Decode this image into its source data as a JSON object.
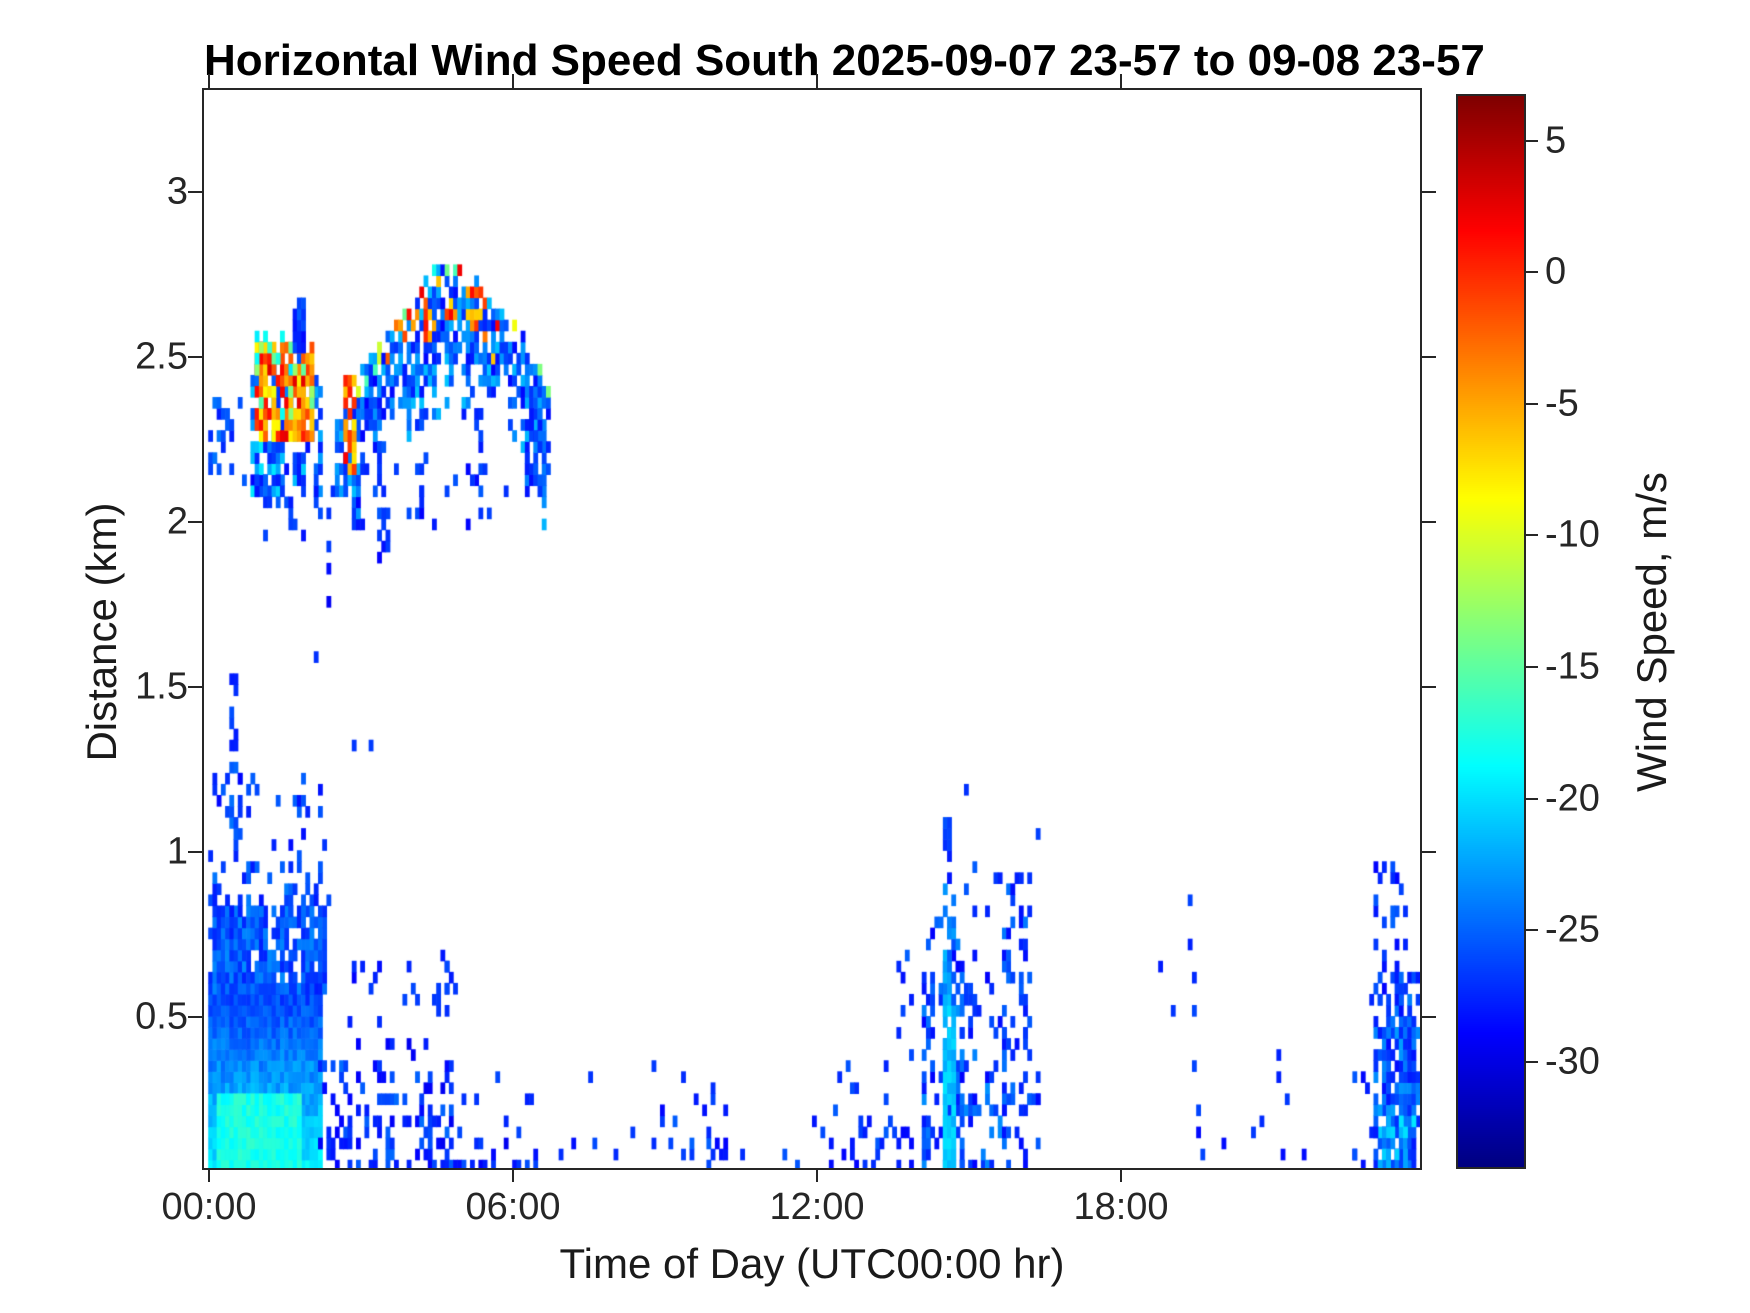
{
  "title": "Horizontal Wind Speed South 2025-09-07 23-57 to 09-08 23-57",
  "axes": {
    "xlabel": "Time of Day (UTC00:00 hr)",
    "ylabel": "Distance (km)",
    "x_ticks": [
      {
        "hour": 0,
        "label": "00:00"
      },
      {
        "hour": 6,
        "label": "06:00"
      },
      {
        "hour": 12,
        "label": "12:00"
      },
      {
        "hour": 18,
        "label": "18:00"
      }
    ],
    "y_ticks": [
      {
        "km": 0.5,
        "label": "0.5"
      },
      {
        "km": 1,
        "label": "1"
      },
      {
        "km": 1.5,
        "label": "1.5"
      },
      {
        "km": 2,
        "label": "2"
      },
      {
        "km": 2.5,
        "label": "2.5"
      },
      {
        "km": 3,
        "label": "3"
      }
    ]
  },
  "colorbar": {
    "label": "Wind Speed, m/s",
    "ticks": [
      {
        "value": 5,
        "label": "5"
      },
      {
        "value": 0,
        "label": "0"
      },
      {
        "value": -5,
        "label": "-5"
      },
      {
        "value": -10,
        "label": "-10"
      },
      {
        "value": -15,
        "label": "-15"
      },
      {
        "value": -20,
        "label": "-20"
      },
      {
        "value": -25,
        "label": "-25"
      },
      {
        "value": -30,
        "label": "-30"
      }
    ],
    "vmin": -34,
    "vmax": 6.7,
    "colormap": "jet"
  },
  "chart_data": {
    "type": "heatmap",
    "title": "Horizontal Wind Speed South 2025-09-07 23-57 to 09-08 23-57",
    "xlabel": "Time of Day (UTC00:00 hr)",
    "ylabel": "Distance (km)",
    "value_label": "Wind Speed, m/s",
    "x_range_hours": [
      -0.1,
      23.9
    ],
    "y_range_km": [
      0.042,
      3.309
    ],
    "cell_hours": 0.08333,
    "cell_km": 0.0335,
    "value_range": [
      -34,
      6.7
    ],
    "grid": false,
    "legend_position": "right-colorbar",
    "features": [
      {
        "name": "elevated-lead-specks",
        "kind": "region",
        "t": [
          -0.05,
          0.4
        ],
        "h": [
          2.16,
          2.36
        ],
        "density": 0.45,
        "value": -26,
        "vspread": 2
      },
      {
        "name": "elevated-gap-specks",
        "kind": "region",
        "t": [
          0.4,
          0.85
        ],
        "h": [
          2.05,
          2.4
        ],
        "density": 0.1,
        "value": -27,
        "vspread": 2
      },
      {
        "name": "cloud-A-blue-fringe",
        "kind": "region",
        "t": [
          0.78,
          2.18
        ],
        "h": [
          2.08,
          2.56
        ],
        "density": 0.68,
        "value": -24,
        "vspread": 4.5,
        "ragged": 1,
        "fade_top": 0.4
      },
      {
        "name": "cloud-A-warm-core",
        "kind": "region",
        "t": [
          0.9,
          2.02
        ],
        "h": [
          2.26,
          2.5
        ],
        "density": 0.82,
        "value": -3,
        "vspread": 6,
        "ragged": 1
      },
      {
        "name": "cloud-A-cyan-specks",
        "kind": "region",
        "t": [
          0.9,
          2.02
        ],
        "h": [
          2.3,
          2.54
        ],
        "density": 0.15,
        "value": -16,
        "vspread": 4
      },
      {
        "name": "cloud-A-top-spike",
        "kind": "region",
        "t": [
          1.68,
          1.78
        ],
        "h": [
          2.5,
          2.65
        ],
        "density": 0.8,
        "value": -27,
        "vspread": 2
      },
      {
        "name": "cloud-A-skirt",
        "kind": "region",
        "t": [
          0.9,
          2.25
        ],
        "h": [
          1.95,
          2.1
        ],
        "density": 0.18,
        "value": -27,
        "vspread": 2
      },
      {
        "name": "virga-dots",
        "kind": "dots",
        "points": [
          [
            2.05,
            1.57
          ],
          [
            2.28,
            1.92
          ],
          [
            2.3,
            2.02
          ],
          [
            2.32,
            1.83
          ],
          [
            2.35,
            1.73
          ],
          [
            2.42,
            2.08
          ],
          [
            2.48,
            2.15
          ],
          [
            2.85,
            1.3
          ],
          [
            3.15,
            1.29
          ]
        ],
        "value": -28,
        "vspread": 1.5
      },
      {
        "name": "cloud-B-arc",
        "kind": "arc",
        "t": [
          2.5,
          6.65
        ],
        "top": [
          [
            2.5,
            2.32
          ],
          [
            3.0,
            2.44
          ],
          [
            3.5,
            2.56
          ],
          [
            4.1,
            2.67
          ],
          [
            4.6,
            2.78
          ],
          [
            5.1,
            2.73
          ],
          [
            5.6,
            2.66
          ],
          [
            6.1,
            2.56
          ],
          [
            6.65,
            2.43
          ]
        ],
        "thickness": 0.36,
        "density": 0.78,
        "value": -25,
        "vspread": 4,
        "warm": {
          "t": [
            3.4,
            5.7
          ],
          "band": 0.18,
          "prob": 0.42,
          "value": -2,
          "vspread": 5.5
        },
        "topspeck": {
          "prob": 0.3,
          "value": -13,
          "vspread": 5
        }
      },
      {
        "name": "cloud-B-red-column",
        "kind": "region",
        "t": [
          2.68,
          2.85
        ],
        "h": [
          2.16,
          2.42
        ],
        "density": 0.75,
        "value": -3,
        "vspread": 5
      },
      {
        "name": "cloud-B-hang-1",
        "kind": "region",
        "t": [
          3.3,
          3.45
        ],
        "h": [
          1.88,
          2.2
        ],
        "density": 0.4,
        "value": -27,
        "vspread": 2
      },
      {
        "name": "cloud-B-hang-2",
        "kind": "region",
        "t": [
          4.08,
          4.2
        ],
        "h": [
          2.0,
          2.32
        ],
        "density": 0.4,
        "value": -27,
        "vspread": 2
      },
      {
        "name": "cloud-B-hang-3",
        "kind": "region",
        "t": [
          5.22,
          5.35
        ],
        "h": [
          2.02,
          2.32
        ],
        "density": 0.4,
        "value": -27,
        "vspread": 2
      },
      {
        "name": "cloud-B-hang-4",
        "kind": "region",
        "t": [
          6.22,
          6.5
        ],
        "h": [
          2.08,
          2.3
        ],
        "density": 0.45,
        "value": -26,
        "vspread": 2.5
      },
      {
        "name": "below-arc-specks",
        "kind": "region",
        "t": [
          2.9,
          6.5
        ],
        "h": [
          1.98,
          2.15
        ],
        "density": 0.07,
        "value": -27,
        "vspread": 2
      },
      {
        "name": "bl-cyan-base",
        "kind": "region",
        "t": [
          -0.05,
          2.15
        ],
        "h": [
          0.042,
          0.56
        ],
        "density": 1,
        "value": -19.5,
        "vspread": 1.4,
        "vgrad": -7
      },
      {
        "name": "bl-bright-bottom",
        "kind": "region",
        "t": [
          0.15,
          1.7
        ],
        "h": [
          0.042,
          0.24
        ],
        "density": 1,
        "value": -17.8,
        "vspread": 1.2
      },
      {
        "name": "bl-upper-solid",
        "kind": "region",
        "t": [
          -0.05,
          2.2
        ],
        "h": [
          0.56,
          0.82
        ],
        "density": 0.88,
        "value": -25.5,
        "vspread": 2.2,
        "ragged": 1
      },
      {
        "name": "bl-upper-sparse",
        "kind": "region",
        "t": [
          -0.05,
          2.28
        ],
        "h": [
          0.82,
          1.02
        ],
        "density": 0.42,
        "value": -26,
        "vspread": 2.2,
        "ragged": 1,
        "fade_top": 0.8
      },
      {
        "name": "bl-plume-base",
        "kind": "region",
        "t": [
          0.28,
          0.58
        ],
        "h": [
          1.0,
          1.3
        ],
        "density": 0.6,
        "value": -26,
        "vspread": 2,
        "fade_top": 0.5
      },
      {
        "name": "bl-plume-top",
        "kind": "region",
        "t": [
          0.36,
          0.48
        ],
        "h": [
          1.3,
          1.54
        ],
        "density": 0.75,
        "value": -26.5,
        "vspread": 1.5
      },
      {
        "name": "bl-outliers",
        "kind": "region",
        "t": [
          -0.05,
          2.3
        ],
        "h": [
          1.02,
          1.22
        ],
        "density": 0.08,
        "value": -27,
        "vspread": 2
      },
      {
        "name": "morning-speckle-band",
        "kind": "region",
        "t": [
          2.15,
          4.75
        ],
        "h": [
          0.042,
          0.52
        ],
        "density": 0.55,
        "value": -27,
        "vspread": 2.5,
        "fade_top": 1.3,
        "ragged": 1
      },
      {
        "name": "morning-band-outliers",
        "kind": "region",
        "t": [
          2.2,
          4.7
        ],
        "h": [
          0.52,
          0.64
        ],
        "density": 0.1,
        "value": -27,
        "vspread": 2
      },
      {
        "name": "cluster-0430",
        "kind": "region",
        "t": [
          4.5,
          4.8
        ],
        "h": [
          0.5,
          0.66
        ],
        "density": 0.3,
        "value": -27,
        "vspread": 2
      },
      {
        "name": "late-morning-sparse",
        "kind": "region",
        "t": [
          4.75,
          6.6
        ],
        "h": [
          0.042,
          0.34
        ],
        "density": 0.26,
        "value": -27.5,
        "vspread": 2,
        "fade_top": 1,
        "ragged": 1
      },
      {
        "name": "midday-dots",
        "kind": "dots",
        "points": [
          [
            6.9,
            0.07
          ],
          [
            7.15,
            0.1
          ],
          [
            7.5,
            0.3
          ],
          [
            7.55,
            0.1
          ],
          [
            8.0,
            0.06
          ],
          [
            8.3,
            0.12
          ],
          [
            8.7,
            0.33
          ],
          [
            8.75,
            0.1
          ]
        ],
        "value": -27,
        "vspread": 1.5
      },
      {
        "name": "cluster-0930",
        "kind": "region",
        "t": [
          8.85,
          10.3
        ],
        "h": [
          0.042,
          0.26
        ],
        "density": 0.3,
        "value": -27,
        "vspread": 2,
        "fade_top": 1,
        "ragged": 1
      },
      {
        "name": "midday-dots-2",
        "kind": "dots",
        "points": [
          [
            9.3,
            0.3
          ],
          [
            9.9,
            0.28
          ],
          [
            10.15,
            0.2
          ],
          [
            10.5,
            0.06
          ],
          [
            11.3,
            0.07
          ],
          [
            11.6,
            0.05
          ],
          [
            11.9,
            0.18
          ],
          [
            12.05,
            0.13
          ]
        ],
        "value": -27,
        "vspread": 1.5
      },
      {
        "name": "cluster-1240",
        "kind": "region",
        "t": [
          12.2,
          13.45
        ],
        "h": [
          0.042,
          0.3
        ],
        "density": 0.32,
        "value": -27,
        "vspread": 2,
        "fade_top": 1.1,
        "ragged": 1
      },
      {
        "name": "cluster-1240-dots",
        "kind": "dots",
        "points": [
          [
            13.3,
            0.34
          ],
          [
            12.6,
            0.33
          ],
          [
            12.4,
            0.3
          ]
        ],
        "value": -27,
        "vspread": 1.5
      },
      {
        "name": "afternoon-lead",
        "kind": "region",
        "t": [
          13.55,
          13.8
        ],
        "h": [
          0.042,
          0.78
        ],
        "density": 0.25,
        "value": -27,
        "vspread": 2,
        "fade_top": 0.5,
        "ragged": 1
      },
      {
        "name": "afternoon-main",
        "kind": "region",
        "t": [
          14.05,
          14.8
        ],
        "h": [
          0.042,
          0.82
        ],
        "density": 0.68,
        "value": -26,
        "vspread": 3,
        "fade_top": 0.6,
        "ragged": 1
      },
      {
        "name": "afternoon-cyan-streak",
        "kind": "region",
        "t": [
          14.45,
          14.68
        ],
        "h": [
          0.042,
          0.52
        ],
        "density": 0.95,
        "value": -21,
        "vspread": 1.5
      },
      {
        "name": "afternoon-streak-upper",
        "kind": "region",
        "t": [
          14.45,
          14.68
        ],
        "h": [
          0.52,
          0.9
        ],
        "density": 0.55,
        "value": -23.5,
        "vspread": 2
      },
      {
        "name": "afternoon-spike",
        "kind": "region",
        "t": [
          14.45,
          14.56
        ],
        "h": [
          0.9,
          1.1
        ],
        "density": 0.6,
        "value": -27,
        "vspread": 2
      },
      {
        "name": "afternoon-right",
        "kind": "region",
        "t": [
          14.8,
          15.65
        ],
        "h": [
          0.042,
          1.0
        ],
        "density": 0.4,
        "value": -26,
        "vspread": 3,
        "fade_top": 0.9,
        "ragged": 1
      },
      {
        "name": "afternoon-tail",
        "kind": "region",
        "t": [
          15.65,
          16.15
        ],
        "h": [
          0.25,
          0.9
        ],
        "density": 0.28,
        "value": -26.5,
        "vspread": 2.5,
        "ragged": 1
      },
      {
        "name": "afternoon-tail-low",
        "kind": "region",
        "t": [
          15.65,
          16.35
        ],
        "h": [
          0.042,
          0.25
        ],
        "density": 0.22,
        "value": -27,
        "vspread": 2
      },
      {
        "name": "afternoon-high-dots",
        "kind": "dots",
        "points": [
          [
            14.9,
            1.16
          ],
          [
            16.3,
            1.03
          ],
          [
            16.32,
            0.3
          ],
          [
            16.35,
            0.24
          ],
          [
            16.1,
            0.45
          ]
        ],
        "value": -27.5,
        "vspread": 1.5
      },
      {
        "name": "evening-dots",
        "kind": "dots",
        "points": [
          [
            18.7,
            0.64
          ],
          [
            19.0,
            0.49
          ],
          [
            19.3,
            0.85
          ],
          [
            19.33,
            0.72
          ],
          [
            19.38,
            0.6
          ],
          [
            19.42,
            0.5
          ],
          [
            19.4,
            0.33
          ],
          [
            19.45,
            0.2
          ],
          [
            19.5,
            0.12
          ],
          [
            19.6,
            0.07
          ],
          [
            20.0,
            0.11
          ],
          [
            20.6,
            0.12
          ],
          [
            20.72,
            0.16
          ],
          [
            21.05,
            0.37
          ],
          [
            21.1,
            0.3
          ],
          [
            21.2,
            0.23
          ],
          [
            21.15,
            0.08
          ],
          [
            21.6,
            0.06
          ]
        ],
        "value": -27.5,
        "vspread": 1.5
      },
      {
        "name": "night-upper",
        "kind": "region",
        "t": [
          23.02,
          23.6
        ],
        "h": [
          0.55,
          0.95
        ],
        "density": 0.2,
        "value": -27,
        "vspread": 2
      },
      {
        "name": "night-upper-dots",
        "kind": "dots",
        "points": [
          [
            23.15,
            0.95
          ],
          [
            23.35,
            0.9
          ],
          [
            22.9,
            0.55
          ],
          [
            22.75,
            0.3
          ],
          [
            22.6,
            0.08
          ]
        ],
        "value": -27.5,
        "vspread": 1.5
      },
      {
        "name": "night-mid",
        "kind": "region",
        "t": [
          23.0,
          23.95
        ],
        "h": [
          0.42,
          0.6
        ],
        "density": 0.5,
        "value": -26,
        "vspread": 2.5,
        "ragged": 1
      },
      {
        "name": "night-core",
        "kind": "region",
        "t": [
          23.0,
          23.95
        ],
        "h": [
          0.042,
          0.42
        ],
        "density": 0.88,
        "value": -25.5,
        "vspread": 3,
        "ragged": 1
      },
      {
        "name": "night-cyan-bits",
        "kind": "region",
        "t": [
          23.05,
          23.9
        ],
        "h": [
          0.042,
          0.2
        ],
        "density": 0.3,
        "value": -21,
        "vspread": 1.5
      },
      {
        "name": "night-lead-sparse",
        "kind": "region",
        "t": [
          22.55,
          23.0
        ],
        "h": [
          0.042,
          0.3
        ],
        "density": 0.18,
        "value": -27,
        "vspread": 2
      }
    ]
  }
}
